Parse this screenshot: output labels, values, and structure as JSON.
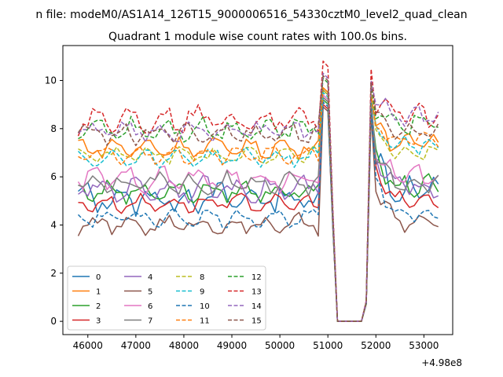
{
  "chart_data": {
    "type": "line",
    "suptitle": "n file: modeM0/AS1A14_126T15_9000006516_54330cztM0_level2_quad_clean",
    "title": "Quadrant 1 module wise count rates with 100.0s bins.",
    "xlabel": "",
    "ylabel": "",
    "x_offset_label": "+4.98e8",
    "xlim": [
      45480,
      53600
    ],
    "ylim": [
      -0.55,
      11.45
    ],
    "x_ticks": [
      46000,
      47000,
      48000,
      49000,
      50000,
      51000,
      52000,
      53000
    ],
    "x_tick_labels": [
      "46000",
      "47000",
      "48000",
      "49000",
      "50000",
      "51000",
      "52000",
      "53000"
    ],
    "y_ticks": [
      0,
      2,
      4,
      6,
      8,
      10
    ],
    "y_tick_labels": [
      "0",
      "2",
      "4",
      "6",
      "8",
      "10"
    ],
    "grid": false,
    "legend_placement": "lower-left",
    "legend_columns": 4,
    "x_start": 45800,
    "x_step": 100,
    "segments": [
      [
        45800,
        50800
      ],
      [
        50900,
        51200
      ],
      [
        51300,
        51700
      ],
      [
        51800,
        51900
      ],
      [
        52000,
        53300
      ]
    ],
    "series": [
      {
        "name": "0",
        "color": "#1f77b4",
        "dash": "solid",
        "base": 5.1,
        "amp": 0.45,
        "phase": 0.3,
        "peak": 9.6,
        "post": 5.4
      },
      {
        "name": "1",
        "color": "#ff7f0e",
        "dash": "solid",
        "base": 7.2,
        "amp": 0.3,
        "phase": 1.1,
        "peak": 9.7,
        "post": 7.4
      },
      {
        "name": "2",
        "color": "#2ca02c",
        "dash": "solid",
        "base": 5.4,
        "amp": 0.3,
        "phase": 2.0,
        "peak": 9.2,
        "post": 5.6
      },
      {
        "name": "3",
        "color": "#d62728",
        "dash": "solid",
        "base": 4.9,
        "amp": 0.25,
        "phase": 2.7,
        "peak": 9.0,
        "post": 5.0
      },
      {
        "name": "4",
        "color": "#9467bd",
        "dash": "solid",
        "base": 5.5,
        "amp": 0.35,
        "phase": 3.3,
        "peak": 9.3,
        "post": 5.6
      },
      {
        "name": "5",
        "color": "#8c564b",
        "dash": "solid",
        "base": 4.0,
        "amp": 0.3,
        "phase": 4.1,
        "peak": 8.9,
        "post": 4.1
      },
      {
        "name": "6",
        "color": "#e377c2",
        "dash": "solid",
        "base": 5.9,
        "amp": 0.35,
        "phase": 4.8,
        "peak": 9.4,
        "post": 6.0
      },
      {
        "name": "7",
        "color": "#7f7f7f",
        "dash": "solid",
        "base": 5.7,
        "amp": 0.35,
        "phase": 5.6,
        "peak": 9.3,
        "post": 5.8
      },
      {
        "name": "8",
        "color": "#bcbd22",
        "dash": "dashed",
        "base": 6.9,
        "amp": 0.25,
        "phase": 0.9,
        "peak": 9.6,
        "post": 7.0
      },
      {
        "name": "9",
        "color": "#17becf",
        "dash": "dashed",
        "base": 6.8,
        "amp": 0.25,
        "phase": 1.7,
        "peak": 9.5,
        "post": 7.3
      },
      {
        "name": "10",
        "color": "#1f77b4",
        "dash": "dashed",
        "base": 4.3,
        "amp": 0.25,
        "phase": 2.4,
        "peak": 9.1,
        "post": 4.5
      },
      {
        "name": "11",
        "color": "#ff7f0e",
        "dash": "dashed",
        "base": 6.9,
        "amp": 0.25,
        "phase": 3.0,
        "peak": 9.7,
        "post": 7.5
      },
      {
        "name": "12",
        "color": "#2ca02c",
        "dash": "dashed",
        "base": 8.0,
        "amp": 0.35,
        "phase": 3.8,
        "peak": 10.1,
        "post": 8.3
      },
      {
        "name": "13",
        "color": "#d62728",
        "dash": "dashed",
        "base": 8.4,
        "amp": 0.4,
        "phase": 4.5,
        "peak": 10.8,
        "post": 8.6
      },
      {
        "name": "14",
        "color": "#9467bd",
        "dash": "dashed",
        "base": 7.9,
        "amp": 0.3,
        "phase": 5.2,
        "peak": 10.3,
        "post": 8.5
      },
      {
        "name": "15",
        "color": "#8c564b",
        "dash": "dashed",
        "base": 7.8,
        "amp": 0.3,
        "phase": 6.0,
        "peak": 10.2,
        "post": 7.9
      }
    ]
  }
}
